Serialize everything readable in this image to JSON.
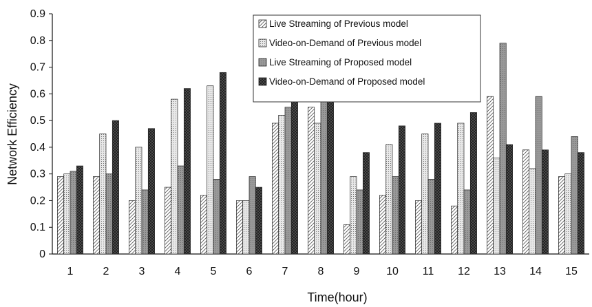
{
  "chart_data": {
    "type": "bar",
    "title": "",
    "xlabel": "Time(hour)",
    "ylabel": "Network Efficiency",
    "ylim": [
      0,
      0.9
    ],
    "yticks": [
      "0",
      "0.1",
      "0.2",
      "0.3",
      "0.4",
      "0.5",
      "0.6",
      "0.7",
      "0.8",
      "0.9"
    ],
    "categories": [
      "1",
      "2",
      "3",
      "4",
      "5",
      "6",
      "7",
      "8",
      "9",
      "10",
      "11",
      "12",
      "13",
      "14",
      "15"
    ],
    "grid": false,
    "legend_position": "top-right",
    "series": [
      {
        "name": "Live Streaming of Previous model",
        "pattern": "diagonal-light",
        "values": [
          0.29,
          0.29,
          0.2,
          0.25,
          0.22,
          0.2,
          0.49,
          0.55,
          0.11,
          0.22,
          0.2,
          0.18,
          0.59,
          0.39,
          0.29
        ]
      },
      {
        "name": "Video-on-Demand of Previous model",
        "pattern": "dotted-light",
        "values": [
          0.3,
          0.45,
          0.4,
          0.58,
          0.63,
          0.2,
          0.52,
          0.49,
          0.29,
          0.41,
          0.45,
          0.49,
          0.36,
          0.32,
          0.3
        ]
      },
      {
        "name": "Live Streaming of Proposed model",
        "pattern": "gray-medium",
        "values": [
          0.31,
          0.3,
          0.24,
          0.33,
          0.28,
          0.29,
          0.55,
          0.59,
          0.24,
          0.29,
          0.28,
          0.24,
          0.79,
          0.59,
          0.44
        ]
      },
      {
        "name": "Video-on-Demand of Proposed model",
        "pattern": "checker-dark",
        "values": [
          0.33,
          0.5,
          0.47,
          0.62,
          0.68,
          0.25,
          0.58,
          0.57,
          0.38,
          0.48,
          0.49,
          0.53,
          0.41,
          0.39,
          0.38
        ]
      }
    ]
  }
}
